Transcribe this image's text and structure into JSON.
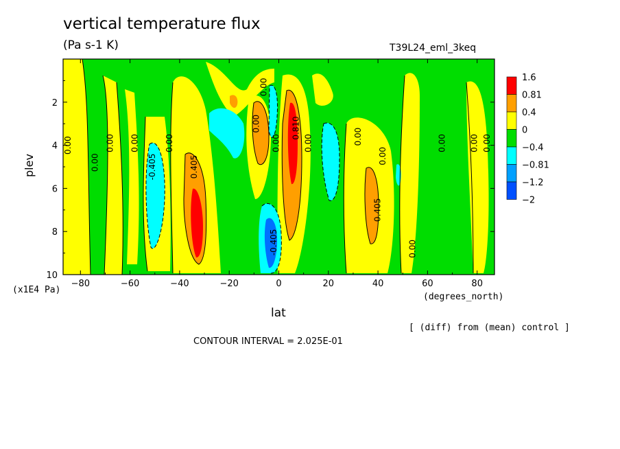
{
  "chart_data": {
    "type": "contour",
    "title": "vertical temperature flux",
    "subtitle": "(Pa s-1 K)",
    "run_label": "T39L24_eml_3keq",
    "xlabel": "lat",
    "xunits": "(degrees_north)",
    "ylabel": "plev",
    "yunits": "(x1E4 Pa)",
    "xlim": [
      -87,
      87
    ],
    "ylim": [
      10,
      0
    ],
    "x_ticks": [
      -80,
      -60,
      -40,
      -20,
      0,
      20,
      40,
      60,
      80
    ],
    "x_tick_labels": [
      "−80",
      "−60",
      "−40",
      "−20",
      "0",
      "20",
      "40",
      "60",
      "80"
    ],
    "y_ticks": [
      2,
      4,
      6,
      8,
      10
    ],
    "y_tick_labels": [
      "2",
      "4",
      "6",
      "8",
      "10"
    ],
    "note": "[ (diff) from (mean) control ]",
    "contour_interval": "CONTOUR INTERVAL = 2.025E-01",
    "legend": {
      "labels": [
        "1.6",
        "0.81",
        "0.4",
        "0",
        "−0.4",
        "−0.81",
        "−1.2",
        "−2"
      ],
      "colors": [
        "#ff0000",
        "#ff9f00",
        "#ffff00",
        "#00dd00",
        "#00ffff",
        "#00a0ff",
        "#0050ff"
      ]
    },
    "contour_labels": [
      {
        "text": "0.00",
        "x": -84,
        "y": 4.0
      },
      {
        "text": "0.00",
        "x": -73,
        "y": 4.8
      },
      {
        "text": "0.00",
        "x": -67,
        "y": 3.9
      },
      {
        "text": "0.00",
        "x": -57,
        "y": 3.9
      },
      {
        "text": "-0.405",
        "x": -50,
        "y": 5.0
      },
      {
        "text": "0.00",
        "x": -43,
        "y": 3.9
      },
      {
        "text": "0.405",
        "x": -33,
        "y": 5.0
      },
      {
        "text": "0.00",
        "x": -5,
        "y": 1.3
      },
      {
        "text": "0.00",
        "x": -8,
        "y": 3.0
      },
      {
        "text": "0.00",
        "x": 0,
        "y": 3.9
      },
      {
        "text": "0.810",
        "x": 8,
        "y": 3.2
      },
      {
        "text": "0.00",
        "x": 13,
        "y": 3.9
      },
      {
        "text": "0.00",
        "x": 33,
        "y": 3.6
      },
      {
        "text": "0.00",
        "x": 43,
        "y": 4.5
      },
      {
        "text": "0.405",
        "x": 41,
        "y": 7.0
      },
      {
        "text": "0.00",
        "x": 55,
        "y": 8.8
      },
      {
        "text": "0.00",
        "x": 67,
        "y": 3.9
      },
      {
        "text": "0.00",
        "x": 80,
        "y": 3.9
      },
      {
        "text": "0.00",
        "x": 85,
        "y": 3.9
      },
      {
        "text": "-0.405",
        "x": -1,
        "y": 8.5
      }
    ]
  }
}
